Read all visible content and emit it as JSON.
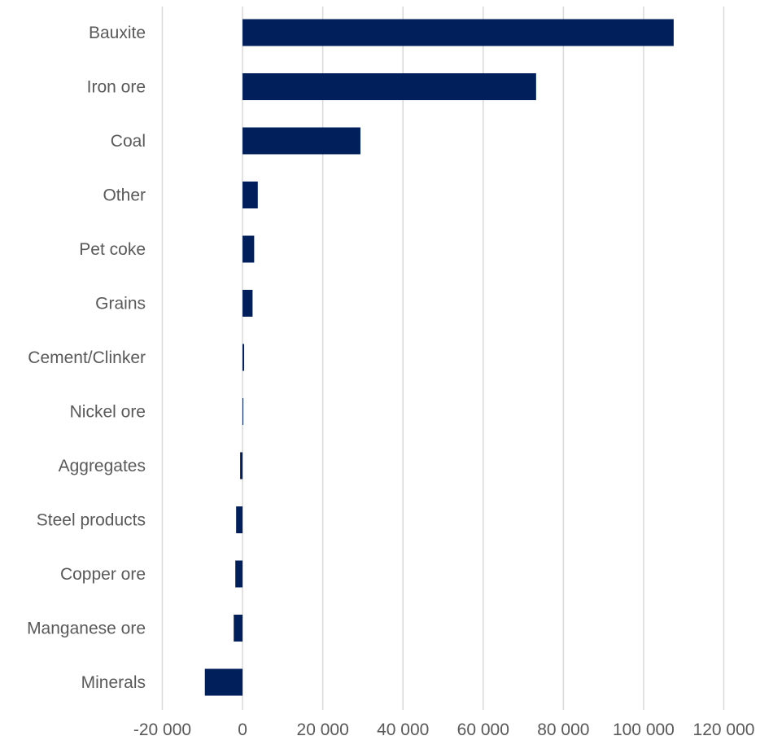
{
  "chart_data": {
    "type": "bar",
    "orientation": "horizontal",
    "categories": [
      "Bauxite",
      "Iron ore",
      "Coal",
      "Other",
      "Pet coke",
      "Grains",
      "Cement/Clinker",
      "Nickel ore",
      "Aggregates",
      "Steel products",
      "Copper ore",
      "Manganese ore",
      "Minerals"
    ],
    "values": [
      107500,
      73200,
      29400,
      3800,
      2900,
      2500,
      400,
      100,
      -600,
      -1600,
      -1800,
      -2200,
      -9400
    ],
    "xlim": [
      -20000,
      120000
    ],
    "x_ticks": [
      -20000,
      0,
      20000,
      40000,
      60000,
      80000,
      100000,
      120000
    ],
    "x_tick_labels": [
      "-20 000",
      "0",
      "20 000",
      "40 000",
      "60 000",
      "80 000",
      "100 000",
      "120 000"
    ],
    "title": "",
    "xlabel": "",
    "ylabel": "",
    "grid": "vertical",
    "legend": "none",
    "colors": {
      "bar": "#001f5b",
      "grid": "#d9d9d9",
      "text": "#595959"
    }
  }
}
